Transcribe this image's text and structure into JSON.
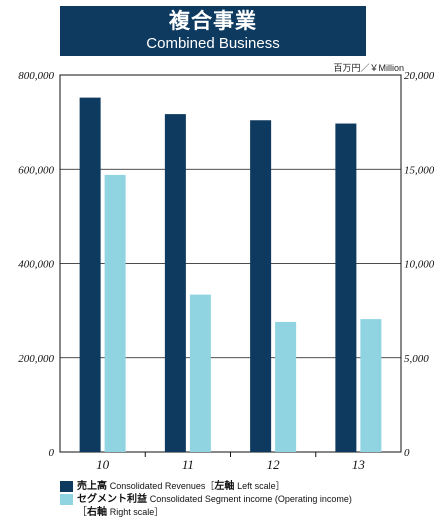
{
  "header": {
    "title_jp": "複合事業",
    "title_en": "Combined Business",
    "unit": "百万円／￥Million"
  },
  "chart_data": {
    "type": "bar",
    "categories": [
      "10",
      "11",
      "12",
      "13"
    ],
    "series": [
      {
        "name": "売上高 Consolidated Revenues［左軸 Left scale］",
        "axis": "left",
        "color": "#0e3a5f",
        "values": [
          752000,
          717000,
          704000,
          697000
        ]
      },
      {
        "name": "セグメント利益 Consolidated Segment income (Operating income)［右軸 Right scale］",
        "axis": "right",
        "color": "#8fd4e0",
        "values": [
          14700,
          8350,
          6900,
          7050
        ]
      }
    ],
    "left_axis": {
      "ylim": [
        0,
        800000
      ],
      "ticks": [
        "0",
        "200,000",
        "400,000",
        "600,000",
        "800,000"
      ]
    },
    "right_axis": {
      "ylim": [
        0,
        20000
      ],
      "ticks": [
        "0",
        "5,000",
        "10,000",
        "15,000",
        "20,000"
      ]
    },
    "grid": true
  },
  "legend": {
    "rev_jp": "売上高",
    "rev_en": "Consolidated Revenues［",
    "rev_axis_jp": "左軸",
    "rev_axis_en": "Left scale］",
    "inc_jp": "セグメント利益",
    "inc_en": "Consolidated Segment income (Operating income)",
    "inc_sub_open": "［",
    "inc_axis_jp": "右軸",
    "inc_axis_en": "Right scale］"
  }
}
